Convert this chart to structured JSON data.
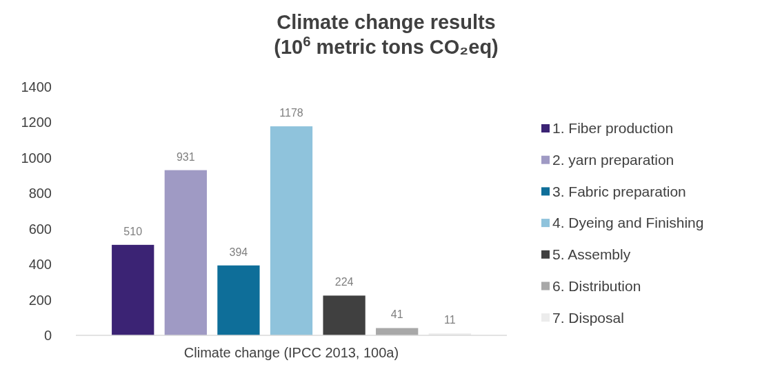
{
  "chart_data": {
    "type": "bar",
    "title": "Climate change results\n(10$^{6}$ metric tons CO₂eq)",
    "categories": [
      "Climate change (IPCC 2013, 100a)"
    ],
    "series": [
      {
        "name": "1. Fiber production",
        "color": "#3b2374",
        "values": [
          510
        ]
      },
      {
        "name": "2. yarn preparation",
        "color": "#9f9ac4",
        "values": [
          931
        ]
      },
      {
        "name": "3. Fabric preparation",
        "color": "#0e6e99",
        "values": [
          394
        ]
      },
      {
        "name": "4. Dyeing and Finishing",
        "color": "#8fc3dc",
        "values": [
          1178
        ]
      },
      {
        "name": "5. Assembly",
        "color": "#404040",
        "values": [
          224
        ]
      },
      {
        "name": "6. Distribution",
        "color": "#a8a8a8",
        "values": [
          41
        ]
      },
      {
        "name": "7. Disposal",
        "color": "#ececec",
        "values": [
          11
        ]
      }
    ],
    "ylim": [
      0,
      1400
    ],
    "yticks": [
      0,
      200,
      400,
      600,
      800,
      1000,
      1200,
      1400
    ],
    "data_labels": true,
    "grid": false,
    "legend": "right"
  }
}
